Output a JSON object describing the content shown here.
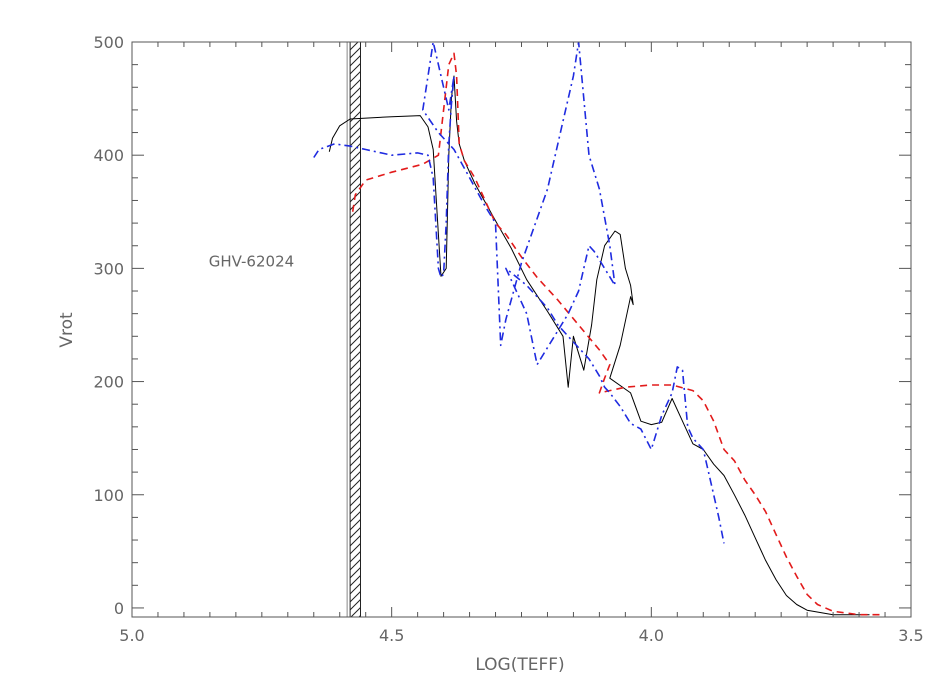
{
  "chart_data": {
    "type": "line",
    "xlabel": "LOG(TEFF)",
    "ylabel": "Vrot",
    "xlim": [
      5.0,
      3.5
    ],
    "ylim": [
      -8,
      500
    ],
    "x_axis_reversed": true,
    "x_ticks": [
      5.0,
      4.5,
      4.0,
      3.5
    ],
    "x_tick_labels": [
      "5.0",
      "4.5",
      "4.0",
      "3.5"
    ],
    "y_ticks": [
      0,
      100,
      200,
      300,
      400,
      500
    ],
    "y_tick_labels": [
      "0",
      "100",
      "200",
      "300",
      "400",
      "500"
    ],
    "annotation": {
      "text": "GHV-62024",
      "x": 4.77,
      "y": 300
    },
    "shaded_band": {
      "x_from": 4.58,
      "x_to": 4.56,
      "pattern": "hatched"
    },
    "grid": false,
    "colors": {
      "axes": "#555555",
      "text": "#666666"
    },
    "series": [
      {
        "color": "#000000",
        "dash": "solid",
        "points": [
          [
            4.62,
            403
          ],
          [
            4.614,
            415
          ],
          [
            4.6,
            426
          ],
          [
            4.58,
            432
          ],
          [
            4.5,
            434
          ],
          [
            4.445,
            435
          ],
          [
            4.43,
            425
          ],
          [
            4.42,
            405
          ],
          [
            4.41,
            330
          ],
          [
            4.405,
            293
          ],
          [
            4.395,
            300
          ],
          [
            4.39,
            400
          ],
          [
            4.385,
            450
          ],
          [
            4.38,
            470
          ],
          [
            4.375,
            430
          ],
          [
            4.37,
            410
          ],
          [
            4.36,
            395
          ],
          [
            4.34,
            375
          ],
          [
            4.3,
            342
          ],
          [
            4.27,
            318
          ],
          [
            4.24,
            290
          ],
          [
            4.2,
            262
          ],
          [
            4.17,
            240
          ],
          [
            4.16,
            195
          ],
          [
            4.15,
            240
          ],
          [
            4.14,
            225
          ],
          [
            4.13,
            210
          ],
          [
            4.115,
            250
          ],
          [
            4.105,
            290
          ],
          [
            4.09,
            320
          ],
          [
            4.07,
            333
          ],
          [
            4.06,
            330
          ],
          [
            4.05,
            300
          ],
          [
            4.04,
            285
          ],
          [
            4.035,
            268
          ],
          [
            4.04,
            275
          ],
          [
            4.06,
            232
          ],
          [
            4.08,
            203
          ],
          [
            4.04,
            190
          ],
          [
            4.02,
            165
          ],
          [
            4.0,
            162
          ],
          [
            3.98,
            164
          ],
          [
            3.96,
            185
          ],
          [
            3.94,
            165
          ],
          [
            3.92,
            145
          ],
          [
            3.9,
            140
          ],
          [
            3.88,
            127
          ],
          [
            3.86,
            117
          ],
          [
            3.84,
            100
          ],
          [
            3.82,
            82
          ],
          [
            3.8,
            62
          ],
          [
            3.78,
            42
          ],
          [
            3.76,
            25
          ],
          [
            3.74,
            11
          ],
          [
            3.72,
            3
          ],
          [
            3.7,
            -2
          ],
          [
            3.65,
            -6
          ],
          [
            3.58,
            -6
          ]
        ]
      },
      {
        "color": "#e21b1b",
        "dash": "dashed",
        "points": [
          [
            4.575,
            350
          ],
          [
            4.57,
            365
          ],
          [
            4.55,
            378
          ],
          [
            4.5,
            385
          ],
          [
            4.44,
            392
          ],
          [
            4.41,
            400
          ],
          [
            4.4,
            440
          ],
          [
            4.39,
            480
          ],
          [
            4.38,
            490
          ],
          [
            4.375,
            470
          ],
          [
            4.37,
            410
          ],
          [
            4.36,
            395
          ],
          [
            4.34,
            380
          ],
          [
            4.31,
            350
          ],
          [
            4.3,
            340
          ],
          [
            4.28,
            330
          ],
          [
            4.25,
            310
          ],
          [
            4.22,
            292
          ],
          [
            4.18,
            272
          ],
          [
            4.14,
            250
          ],
          [
            4.1,
            228
          ],
          [
            4.08,
            215
          ],
          [
            4.09,
            203
          ],
          [
            4.1,
            190
          ],
          [
            4.05,
            195
          ],
          [
            4.0,
            197
          ],
          [
            3.96,
            197
          ],
          [
            3.92,
            192
          ],
          [
            3.9,
            183
          ],
          [
            3.88,
            165
          ],
          [
            3.86,
            140
          ],
          [
            3.84,
            130
          ],
          [
            3.82,
            113
          ],
          [
            3.8,
            100
          ],
          [
            3.78,
            85
          ],
          [
            3.76,
            65
          ],
          [
            3.74,
            45
          ],
          [
            3.72,
            28
          ],
          [
            3.7,
            12
          ],
          [
            3.68,
            3
          ],
          [
            3.65,
            -3
          ],
          [
            3.6,
            -6
          ],
          [
            3.56,
            -6
          ]
        ]
      },
      {
        "color": "#1f2be0",
        "dash": "dashdot",
        "points": [
          [
            4.65,
            398
          ],
          [
            4.64,
            405
          ],
          [
            4.61,
            410
          ],
          [
            4.58,
            408
          ],
          [
            4.55,
            405
          ],
          [
            4.5,
            400
          ],
          [
            4.45,
            402
          ],
          [
            4.43,
            400
          ],
          [
            4.42,
            380
          ],
          [
            4.41,
            300
          ],
          [
            4.405,
            292
          ],
          [
            4.4,
            295
          ],
          [
            4.395,
            340
          ],
          [
            4.39,
            410
          ],
          [
            4.385,
            445
          ],
          [
            4.38,
            470
          ],
          [
            4.39,
            440
          ],
          [
            4.41,
            480
          ],
          [
            4.42,
            500
          ],
          [
            4.43,
            470
          ],
          [
            4.44,
            440
          ],
          [
            4.41,
            420
          ],
          [
            4.38,
            405
          ],
          [
            4.35,
            380
          ],
          [
            4.32,
            355
          ],
          [
            4.3,
            340
          ],
          [
            4.29,
            232
          ],
          [
            4.28,
            255
          ],
          [
            4.25,
            305
          ],
          [
            4.2,
            370
          ],
          [
            4.17,
            430
          ],
          [
            4.15,
            470
          ],
          [
            4.14,
            500
          ],
          [
            4.13,
            450
          ],
          [
            4.12,
            400
          ],
          [
            4.1,
            370
          ],
          [
            4.08,
            320
          ],
          [
            4.07,
            285
          ],
          [
            4.09,
            300
          ],
          [
            4.11,
            315
          ],
          [
            4.12,
            320
          ],
          [
            4.14,
            280
          ],
          [
            4.16,
            260
          ],
          [
            4.18,
            245
          ],
          [
            4.2,
            230
          ],
          [
            4.22,
            215
          ],
          [
            4.24,
            260
          ],
          [
            4.26,
            280
          ],
          [
            4.28,
            300
          ],
          [
            4.24,
            285
          ],
          [
            4.2,
            265
          ],
          [
            4.18,
            250
          ],
          [
            4.15,
            235
          ],
          [
            4.12,
            220
          ],
          [
            4.1,
            205
          ],
          [
            4.09,
            195
          ],
          [
            4.08,
            190
          ],
          [
            4.06,
            178
          ],
          [
            4.04,
            163
          ],
          [
            4.02,
            158
          ],
          [
            4.0,
            140
          ],
          [
            3.98,
            170
          ],
          [
            3.96,
            190
          ],
          [
            3.95,
            213
          ],
          [
            3.94,
            210
          ],
          [
            3.93,
            160
          ],
          [
            3.92,
            150
          ],
          [
            3.9,
            140
          ],
          [
            3.89,
            120
          ],
          [
            3.88,
            100
          ],
          [
            3.87,
            80
          ],
          [
            3.86,
            57
          ]
        ]
      }
    ]
  }
}
